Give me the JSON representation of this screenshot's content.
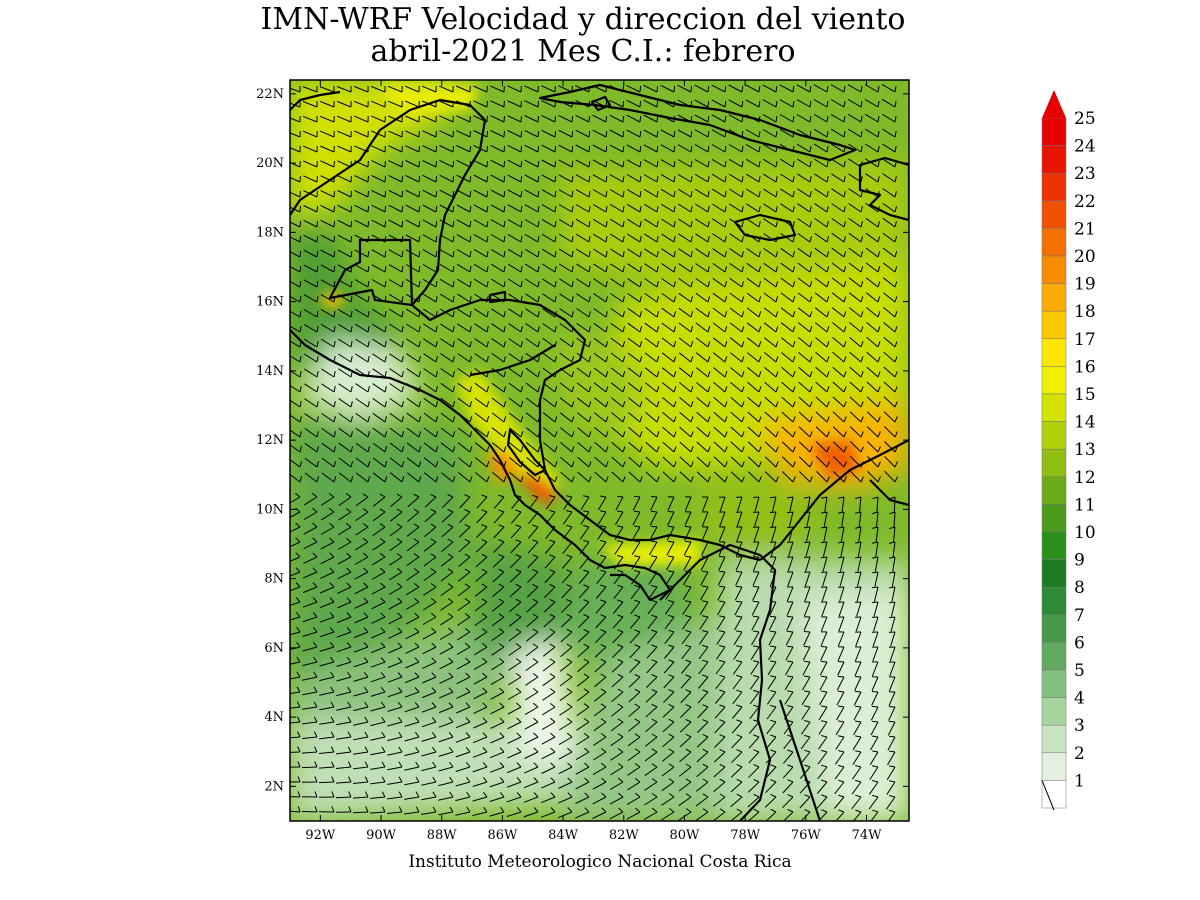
{
  "title": {
    "line1": "IMN-WRF Velocidad y direccion del viento",
    "line2": "abril-2021 Mes C.I.: febrero"
  },
  "credit": "Instituto Meteorologico Nacional Costa Rica",
  "map": {
    "variable": "wind speed and direction",
    "lat_range": [
      1,
      22.4
    ],
    "lon_range": [
      -93,
      -72.6
    ],
    "lat_ticks": [
      "22N",
      "20N",
      "18N",
      "16N",
      "14N",
      "12N",
      "10N",
      "8N",
      "6N",
      "4N",
      "2N"
    ],
    "lon_ticks": [
      "92W",
      "90W",
      "88W",
      "86W",
      "84W",
      "82W",
      "80W",
      "78W",
      "76W",
      "74W"
    ]
  },
  "colorbar": {
    "labels": [
      "1",
      "2",
      "3",
      "4",
      "5",
      "6",
      "7",
      "8",
      "9",
      "10",
      "11",
      "12",
      "13",
      "14",
      "15",
      "16",
      "17",
      "18",
      "19",
      "20",
      "21",
      "22",
      "23",
      "24",
      "25"
    ],
    "colors": [
      "#ffffff",
      "#e3f1de",
      "#c8e4c0",
      "#a8d4a0",
      "#85c080",
      "#62ab62",
      "#47994a",
      "#2e8a35",
      "#1f7a24",
      "#2b8f1c",
      "#4b9c1a",
      "#6cac18",
      "#8fbe12",
      "#b2d00a",
      "#d2e300",
      "#f0f000",
      "#ffe600",
      "#fcc800",
      "#faaa00",
      "#f78c00",
      "#f47000",
      "#f05000",
      "#ec3000",
      "#e81400",
      "#e60000"
    ]
  }
}
